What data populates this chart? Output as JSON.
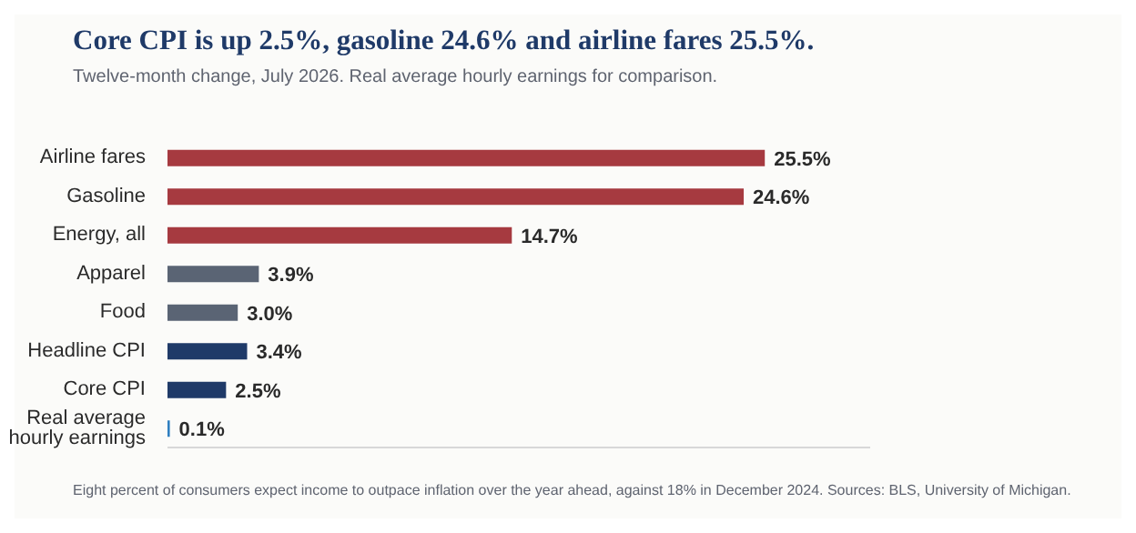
{
  "chart_data": {
    "type": "bar",
    "orientation": "horizontal",
    "title": "Core CPI is up 2.5%, gasoline 24.6% and airline fares 25.5%.",
    "subtitle": "Twelve-month change, July 2026. Real average hourly earnings for comparison.",
    "categories": [
      "Airline fares",
      "Gasoline",
      "Energy, all",
      "Apparel",
      "Food",
      "Headline CPI",
      "Core CPI",
      "Real average hourly earnings"
    ],
    "values": [
      25.5,
      24.6,
      14.7,
      3.9,
      3.0,
      3.4,
      2.5,
      0.1
    ],
    "colors": [
      "#a63a40",
      "#a63a40",
      "#a63a40",
      "#5a6474",
      "#5a6474",
      "#1f3a68",
      "#1f3a68",
      "#2f7fc0"
    ],
    "value_labels": [
      "25.5%",
      "24.6%",
      "14.7%",
      "3.9%",
      "3.0%",
      "3.4%",
      "2.5%",
      "0.1%"
    ],
    "xlim": [
      0,
      30
    ],
    "tick_labels": "y",
    "grid": false,
    "legend": false,
    "annotations": [
      "Eight percent of consumers expect income to outpace inflation over the year ahead, against 18% in December 2024. Sources: BLS, University of Michigan."
    ]
  }
}
